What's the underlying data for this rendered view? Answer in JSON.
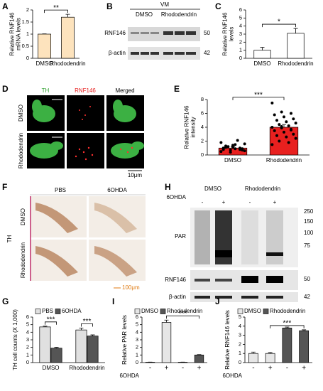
{
  "chart_data": [
    {
      "type": "bar",
      "panel": "A",
      "ylabel": [
        "Relative RNF146",
        "mRNA levels"
      ],
      "categories": [
        "DMSO",
        "Rhododendrin"
      ],
      "series": [
        {
          "color": "#fde3bd",
          "values": [
            1.0,
            1.7
          ],
          "errors": [
            0.01,
            0.12
          ]
        }
      ],
      "ylim": [
        0,
        2
      ],
      "yticks": [
        0,
        0.5,
        1,
        1.5,
        2
      ],
      "significance": [
        "**"
      ]
    },
    {
      "type": "bar",
      "panel": "C",
      "ylabel": [
        "Relative RNF146",
        "levels"
      ],
      "categories": [
        "DMSO",
        "Rhododendrin"
      ],
      "series": [
        {
          "color": "#ffffff",
          "values": [
            1.0,
            3.1
          ],
          "errors": [
            0.35,
            0.6
          ]
        }
      ],
      "ylim": [
        0,
        6
      ],
      "yticks": [
        0,
        1,
        2,
        3,
        4,
        5,
        6
      ],
      "significance": [
        "*"
      ]
    },
    {
      "type": "bar",
      "panel": "E",
      "ylabel": [
        "Relative RNF146",
        "intensity"
      ],
      "categories": [
        "DMSO",
        "Rhododendrin"
      ],
      "series": [
        {
          "color": "#e8201f",
          "values": [
            1.0,
            4.0
          ],
          "errors": [
            0.2,
            0.4
          ],
          "points": [
            [
              0.5,
              0.7,
              0.8,
              1.0,
              1.1,
              0.9,
              1.3,
              1.5,
              0.6,
              1.2,
              2.1,
              1.8,
              0.4,
              1.0,
              0.8,
              1.4,
              0.7,
              1.1,
              0.9,
              1.6
            ],
            [
              7.5,
              6.2,
              6.0,
              5.8,
              5.5,
              5.2,
              5.0,
              4.8,
              4.6,
              4.4,
              4.2,
              4.0,
              3.9,
              3.7,
              3.5,
              3.3,
              3.0,
              2.8,
              2.6,
              2.4,
              2.0,
              1.8,
              1.5,
              4.1,
              3.6
            ]
          ]
        }
      ],
      "ylim": [
        0,
        8
      ],
      "yticks": [
        0,
        2,
        4,
        6,
        8
      ],
      "significance": [
        "***"
      ]
    },
    {
      "type": "bar",
      "panel": "G",
      "ylabel": [
        "TH cell counts (X 1,000)"
      ],
      "categories": [
        "DMSO",
        "Rhododendrin"
      ],
      "grouped": true,
      "legend": "top-left",
      "series": [
        {
          "name": "PBS",
          "color": "#e0e0e0",
          "values": [
            4.7,
            4.3
          ],
          "errors": [
            0.1,
            0.25
          ]
        },
        {
          "name": "6OHDA",
          "color": "#555555",
          "values": [
            1.9,
            3.5
          ],
          "errors": [
            0.1,
            0.15
          ]
        }
      ],
      "ylim": [
        0,
        6
      ],
      "yticks": [
        0,
        1,
        2,
        3,
        4,
        5,
        6
      ],
      "significance": [
        "***",
        "***"
      ]
    },
    {
      "type": "bar",
      "panel": "I",
      "ylabel": [
        "Relative PAR levels"
      ],
      "xlabel": "6OHDA",
      "categories": [
        "-",
        "+",
        "-",
        "+"
      ],
      "legend": "top",
      "series": [
        {
          "name": "DMSO",
          "color": "#e6e6e6",
          "values": [
            0.05,
            5.3,
            null,
            null
          ],
          "errors": [
            0.02,
            0.3,
            null,
            null
          ]
        },
        {
          "name": "Rhododendrin",
          "color": "#555555",
          "values": [
            null,
            null,
            0.05,
            1.0
          ],
          "errors": [
            null,
            null,
            0.02,
            0.05
          ]
        }
      ],
      "ylim": [
        0,
        6
      ],
      "yticks": [
        0,
        1,
        2,
        3,
        4,
        5,
        6
      ],
      "significance": [
        "***"
      ]
    },
    {
      "type": "bar",
      "panel": "J",
      "ylabel": [
        "Relative RNF146 levels"
      ],
      "xlabel": "6OHDA",
      "categories": [
        "-",
        "+",
        "-",
        "+"
      ],
      "legend": "top",
      "series": [
        {
          "name": "DMSO",
          "color": "#e6e6e6",
          "values": [
            1.0,
            1.0,
            null,
            null
          ],
          "errors": [
            0.15,
            0.1,
            null,
            null
          ]
        },
        {
          "name": "Rhododendrin",
          "color": "#555555",
          "values": [
            null,
            null,
            3.8,
            3.5
          ],
          "errors": [
            null,
            null,
            0.1,
            0.1
          ]
        }
      ],
      "ylim": [
        0,
        5
      ],
      "yticks": [
        0,
        1,
        2,
        3,
        4,
        5
      ],
      "significance": [
        "***"
      ]
    }
  ],
  "blot_B": {
    "panel": "B",
    "header": "VM",
    "lanes": [
      "DMSO",
      "Rhododendrin"
    ],
    "rows": [
      "RNF146",
      "β-actin"
    ],
    "markers": [
      "50",
      "42"
    ]
  },
  "image_D": {
    "panel": "D",
    "columns": [
      "TH",
      "RNF146",
      "Merged"
    ],
    "rows": [
      "DMSO",
      "Rhododendrin"
    ],
    "scale": "10μm"
  },
  "image_F": {
    "panel": "F",
    "columns": [
      "PBS",
      "6OHDA"
    ],
    "rows": [
      "DMSO",
      "Rhododendrin"
    ],
    "stain": "TH",
    "scale": "100μm"
  },
  "blot_H": {
    "panel": "H",
    "treatment": "6OHDA",
    "signs": [
      "-",
      "+",
      "-",
      "+"
    ],
    "groups": [
      "DMSO",
      "Rhododendrin"
    ],
    "rows": [
      "PAR",
      "RNF146",
      "β-actin"
    ],
    "markers": [
      "250",
      "150",
      "100",
      "75",
      "50",
      "42"
    ]
  }
}
